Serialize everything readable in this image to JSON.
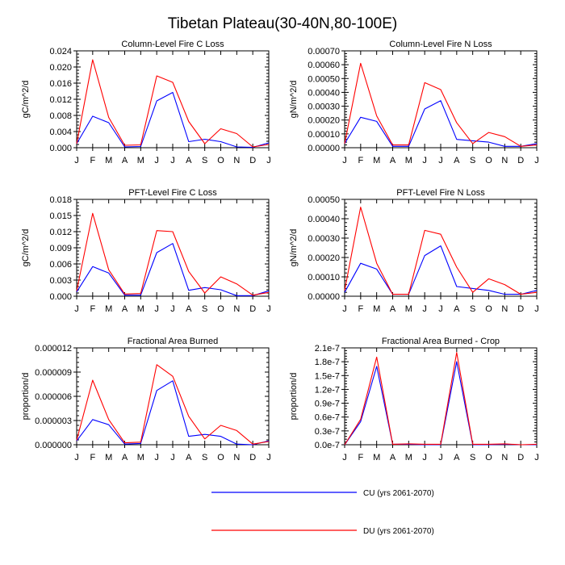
{
  "figure": {
    "title": "Tibetan Plateau(30-40N,80-100E)"
  },
  "legend": {
    "entries": [
      {
        "label": "CU (yrs 2061-2070)",
        "color": "#0000ff"
      },
      {
        "label": "DU (yrs 2061-2070)",
        "color": "#ff0000"
      }
    ]
  },
  "chart_data": [
    {
      "type": "line",
      "title": "Column-Level Fire C Loss",
      "ylabel": "gC/m^2/d",
      "categories": [
        "J",
        "F",
        "M",
        "A",
        "M",
        "J",
        "J",
        "A",
        "S",
        "O",
        "N",
        "D",
        "J"
      ],
      "ylim": [
        0,
        0.024
      ],
      "yticks": [
        "0.000",
        "0.004",
        "0.008",
        "0.012",
        "0.016",
        "0.020",
        "0.024"
      ],
      "grid": false,
      "series": [
        {
          "name": "CU (yrs 2061-2070)",
          "color": "#0000ff",
          "values": [
            0.001,
            0.0078,
            0.0062,
            0.0002,
            0.0003,
            0.0116,
            0.0137,
            0.0015,
            0.0021,
            0.0015,
            0.0002,
            0.0001,
            0.0012
          ]
        },
        {
          "name": "DU (yrs 2061-2070)",
          "color": "#ff0000",
          "values": [
            0.001,
            0.0218,
            0.0075,
            0.0006,
            0.0007,
            0.0178,
            0.0162,
            0.0065,
            0.001,
            0.0047,
            0.0035,
            0.0002,
            0.0008
          ]
        }
      ]
    },
    {
      "type": "line",
      "title": "Column-Level Fire N Loss",
      "ylabel": "gN/m^2/d",
      "categories": [
        "J",
        "F",
        "M",
        "A",
        "M",
        "J",
        "J",
        "A",
        "S",
        "O",
        "N",
        "D",
        "J"
      ],
      "ylim": [
        0,
        0.0007
      ],
      "yticks": [
        "0.00000",
        "0.00010",
        "0.00020",
        "0.00030",
        "0.00040",
        "0.00050",
        "0.00060",
        "0.00070"
      ],
      "grid": false,
      "series": [
        {
          "name": "CU (yrs 2061-2070)",
          "color": "#0000ff",
          "values": [
            3e-05,
            0.00022,
            0.00019,
            1e-05,
            1e-05,
            0.00028,
            0.00034,
            6e-05,
            5e-05,
            4e-05,
            1e-05,
            1e-05,
            3e-05
          ]
        },
        {
          "name": "DU (yrs 2061-2070)",
          "color": "#ff0000",
          "values": [
            3e-05,
            0.00061,
            0.00023,
            2e-05,
            2e-05,
            0.00047,
            0.00042,
            0.00018,
            3e-05,
            0.00011,
            8e-05,
            1e-05,
            2e-05
          ]
        }
      ]
    },
    {
      "type": "line",
      "title": "PFT-Level Fire C Loss",
      "ylabel": "gC/m^2/d",
      "categories": [
        "J",
        "F",
        "M",
        "A",
        "M",
        "J",
        "J",
        "A",
        "S",
        "O",
        "N",
        "D",
        "J"
      ],
      "ylim": [
        0,
        0.018
      ],
      "yticks": [
        "0.000",
        "0.003",
        "0.006",
        "0.009",
        "0.012",
        "0.015",
        "0.018"
      ],
      "grid": false,
      "series": [
        {
          "name": "CU (yrs 2061-2070)",
          "color": "#0000ff",
          "values": [
            0.0008,
            0.0055,
            0.0043,
            0.0002,
            0.0002,
            0.0081,
            0.0098,
            0.0011,
            0.0016,
            0.0012,
            0.0001,
            0.0001,
            0.001
          ]
        },
        {
          "name": "DU (yrs 2061-2070)",
          "color": "#ff0000",
          "values": [
            0.001,
            0.0154,
            0.0049,
            0.0004,
            0.0005,
            0.0122,
            0.012,
            0.0046,
            0.0006,
            0.0036,
            0.0023,
            0.0002,
            0.0007
          ]
        }
      ]
    },
    {
      "type": "line",
      "title": "PFT-Level Fire N Loss",
      "ylabel": "gN/m^2/d",
      "categories": [
        "J",
        "F",
        "M",
        "A",
        "M",
        "J",
        "J",
        "A",
        "S",
        "O",
        "N",
        "D",
        "J"
      ],
      "ylim": [
        0,
        0.0005
      ],
      "yticks": [
        "0.00000",
        "0.00010",
        "0.00020",
        "0.00030",
        "0.00040",
        "0.00050"
      ],
      "grid": false,
      "series": [
        {
          "name": "CU (yrs 2061-2070)",
          "color": "#0000ff",
          "values": [
            2e-05,
            0.00017,
            0.00014,
            1e-05,
            1e-05,
            0.00021,
            0.00026,
            5e-05,
            4e-05,
            3e-05,
            1e-05,
            1e-05,
            3e-05
          ]
        },
        {
          "name": "DU (yrs 2061-2070)",
          "color": "#ff0000",
          "values": [
            3e-05,
            0.00046,
            0.00017,
            1e-05,
            1e-05,
            0.00034,
            0.00032,
            0.00015,
            2e-05,
            9e-05,
            6e-05,
            1e-05,
            2e-05
          ]
        }
      ]
    },
    {
      "type": "line",
      "title": "Fractional Area Burned",
      "ylabel": "proportion/d",
      "categories": [
        "J",
        "F",
        "M",
        "A",
        "M",
        "J",
        "J",
        "A",
        "S",
        "O",
        "N",
        "D",
        "J"
      ],
      "ylim": [
        0,
        1.5e-05
      ],
      "yticks": [
        "0.000000",
        "0.000003",
        "0.000006",
        "0.000009",
        "0.000012"
      ],
      "grid": false,
      "series": [
        {
          "name": "CU (yrs 2061-2070)",
          "color": "#0000ff",
          "values": [
            6e-07,
            3.9e-06,
            3.1e-06,
            1e-07,
            2e-07,
            8.4e-06,
            9.9e-06,
            1.3e-06,
            1.6e-06,
            1.3e-06,
            1e-07,
            0.0,
            6e-07
          ]
        },
        {
          "name": "DU (yrs 2061-2070)",
          "color": "#ff0000",
          "values": [
            7e-07,
            1e-05,
            3.9e-06,
            3e-07,
            4e-07,
            1.24e-05,
            1.06e-05,
            4.4e-06,
            9e-07,
            3e-06,
            2.2e-06,
            1e-07,
            5e-07
          ]
        }
      ]
    },
    {
      "type": "line",
      "title": "Fractional Area Burned - Crop",
      "ylabel": "proportion/d",
      "categories": [
        "J",
        "F",
        "M",
        "A",
        "M",
        "J",
        "J",
        "A",
        "S",
        "O",
        "N",
        "D",
        "J"
      ],
      "ylim": [
        0,
        2.1e-07
      ],
      "yticks": [
        "0.0e-7",
        "0.3e-7",
        "0.6e-7",
        "0.9e-7",
        "1.2e-7",
        "1.5e-7",
        "1.8e-7",
        "2.1e-7"
      ],
      "grid": false,
      "series": [
        {
          "name": "CU (yrs 2061-2070)",
          "color": "#0000ff",
          "values": [
            0,
            5e-08,
            1.7e-07,
            1e-09,
            1e-09,
            0,
            0,
            1.8e-07,
            0,
            0,
            1e-09,
            0,
            0
          ]
        },
        {
          "name": "DU (yrs 2061-2070)",
          "color": "#ff0000",
          "values": [
            0,
            5.5e-08,
            1.9e-07,
            1e-09,
            2e-09,
            1e-09,
            1e-09,
            2e-07,
            1e-09,
            1e-09,
            2e-09,
            0,
            1e-09
          ]
        }
      ]
    }
  ]
}
